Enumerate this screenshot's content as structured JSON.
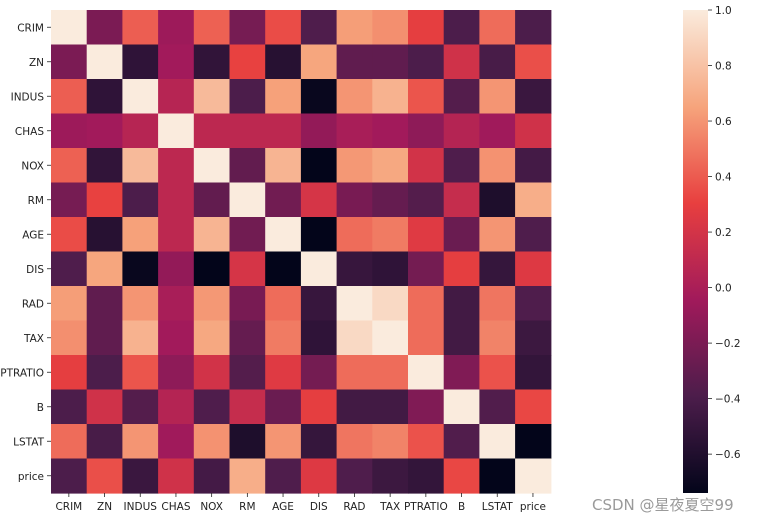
{
  "chart_data": {
    "type": "heatmap",
    "title": "",
    "xlabel": "",
    "ylabel": "",
    "labels": [
      "CRIM",
      "ZN",
      "INDUS",
      "CHAS",
      "NOX",
      "RM",
      "AGE",
      "DIS",
      "RAD",
      "TAX",
      "PTRATIO",
      "B",
      "LSTAT",
      "price"
    ],
    "matrix": [
      [
        1.0,
        -0.2,
        0.41,
        -0.06,
        0.42,
        -0.22,
        0.35,
        -0.38,
        0.63,
        0.58,
        0.29,
        -0.39,
        0.46,
        -0.39
      ],
      [
        -0.2,
        1.0,
        -0.53,
        -0.04,
        -0.52,
        0.31,
        -0.57,
        0.66,
        -0.31,
        -0.31,
        -0.39,
        0.18,
        -0.41,
        0.36
      ],
      [
        0.41,
        -0.53,
        1.0,
        0.06,
        0.76,
        -0.39,
        0.64,
        -0.71,
        0.6,
        0.72,
        0.38,
        -0.36,
        0.6,
        -0.48
      ],
      [
        -0.06,
        -0.04,
        0.06,
        1.0,
        0.09,
        0.09,
        0.09,
        -0.1,
        -0.01,
        -0.04,
        -0.12,
        0.05,
        -0.05,
        0.18
      ],
      [
        0.42,
        -0.52,
        0.76,
        0.09,
        1.0,
        -0.3,
        0.73,
        -0.77,
        0.61,
        0.67,
        0.19,
        -0.38,
        0.59,
        -0.43
      ],
      [
        -0.22,
        0.31,
        -0.39,
        0.09,
        -0.3,
        1.0,
        -0.24,
        0.21,
        -0.21,
        -0.29,
        -0.36,
        0.13,
        -0.61,
        0.7
      ],
      [
        0.35,
        -0.57,
        0.64,
        0.09,
        0.73,
        -0.24,
        1.0,
        -0.75,
        0.46,
        0.51,
        0.26,
        -0.27,
        0.6,
        -0.38
      ],
      [
        -0.38,
        0.66,
        -0.71,
        -0.1,
        -0.77,
        0.21,
        -0.75,
        1.0,
        -0.49,
        -0.53,
        -0.23,
        0.29,
        -0.5,
        0.25
      ],
      [
        0.63,
        -0.31,
        0.6,
        -0.01,
        0.61,
        -0.21,
        0.46,
        -0.49,
        1.0,
        0.91,
        0.46,
        -0.44,
        0.49,
        -0.38
      ],
      [
        0.58,
        -0.31,
        0.72,
        -0.04,
        0.67,
        -0.29,
        0.51,
        -0.53,
        0.91,
        1.0,
        0.46,
        -0.44,
        0.54,
        -0.47
      ],
      [
        0.29,
        -0.39,
        0.38,
        -0.12,
        0.19,
        -0.36,
        0.26,
        -0.23,
        0.46,
        0.46,
        1.0,
        -0.18,
        0.37,
        -0.51
      ],
      [
        -0.39,
        0.18,
        -0.36,
        0.05,
        -0.38,
        0.13,
        -0.27,
        0.29,
        -0.44,
        -0.44,
        -0.18,
        1.0,
        -0.37,
        0.33
      ],
      [
        0.46,
        -0.41,
        0.6,
        -0.05,
        0.59,
        -0.61,
        0.6,
        -0.5,
        0.49,
        0.54,
        0.37,
        -0.37,
        1.0,
        -0.74
      ],
      [
        -0.39,
        0.36,
        -0.48,
        0.18,
        -0.43,
        0.7,
        -0.38,
        0.25,
        -0.38,
        -0.47,
        -0.51,
        0.33,
        -0.74,
        1.0
      ]
    ],
    "colorbar": {
      "min": -0.74,
      "max": 1.0,
      "ticks": [
        1.0,
        0.8,
        0.6,
        0.4,
        0.2,
        0.0,
        -0.2,
        -0.4,
        -0.6
      ],
      "tick_labels": [
        "1.0",
        "0.8",
        "0.6",
        "0.4",
        "0.2",
        "0.0",
        "−0.2",
        "−0.4",
        "−0.6"
      ]
    },
    "colormap": [
      "#03051a",
      "#4c1d4b",
      "#a11a5b",
      "#e83f3f",
      "#f6a47c",
      "#faebdd"
    ],
    "grid": false
  },
  "watermark": "CSDN @星夜夏空99"
}
